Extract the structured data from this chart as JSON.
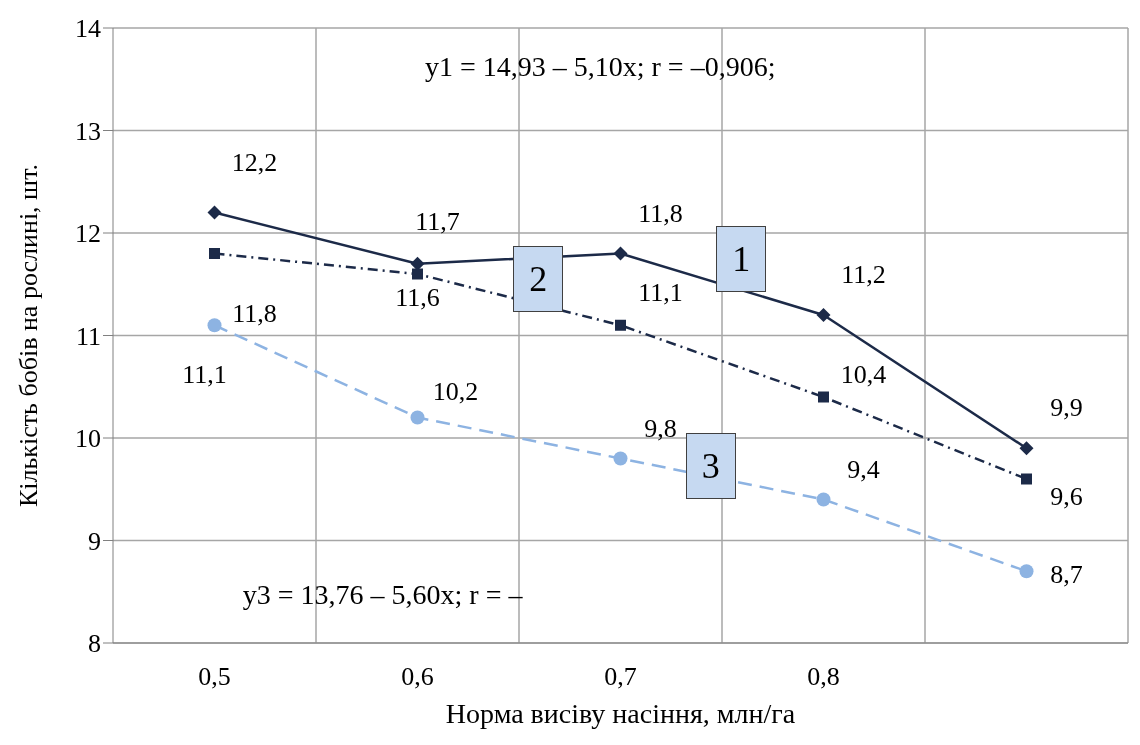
{
  "chart_data": {
    "type": "line",
    "xlabel": "Норма висіву насіння, млн/га",
    "ylabel": "Кількість бобів на рослині, шт.",
    "categories": [
      "0,5",
      "0,6",
      "0,7",
      "0,8",
      null
    ],
    "ylim": [
      8,
      14
    ],
    "yticks": [
      8,
      9,
      10,
      11,
      12,
      13,
      14
    ],
    "grid": true,
    "legend": false,
    "series": [
      {
        "name": "1",
        "color": "#1c2a48",
        "values": [
          12.2,
          11.7,
          11.8,
          11.2,
          9.9
        ],
        "marker": "diamond",
        "line_style": "solid",
        "value_labels": [
          "12,2",
          "11,7",
          "11,8",
          "11,2",
          "9,9"
        ]
      },
      {
        "name": "2",
        "color": "#1c2a48",
        "values": [
          11.8,
          11.6,
          11.1,
          10.4,
          9.6
        ],
        "marker": "square",
        "line_style": "dotted",
        "value_labels": [
          "11,8",
          "11,6",
          "11,1",
          "10,4",
          "9,6"
        ]
      },
      {
        "name": "3",
        "color": "#8db3e2",
        "values": [
          11.1,
          10.2,
          9.8,
          9.4,
          8.7
        ],
        "marker": "circle",
        "line_style": "dashed",
        "value_labels": [
          "11,1",
          "10,2",
          "9,8",
          "9,4",
          "8,7"
        ]
      }
    ],
    "annotations": [
      "y1 = 14,93 – 5,10x; r = –0,906;",
      "y3 = 13,76 – 5,60x; r = –"
    ]
  }
}
